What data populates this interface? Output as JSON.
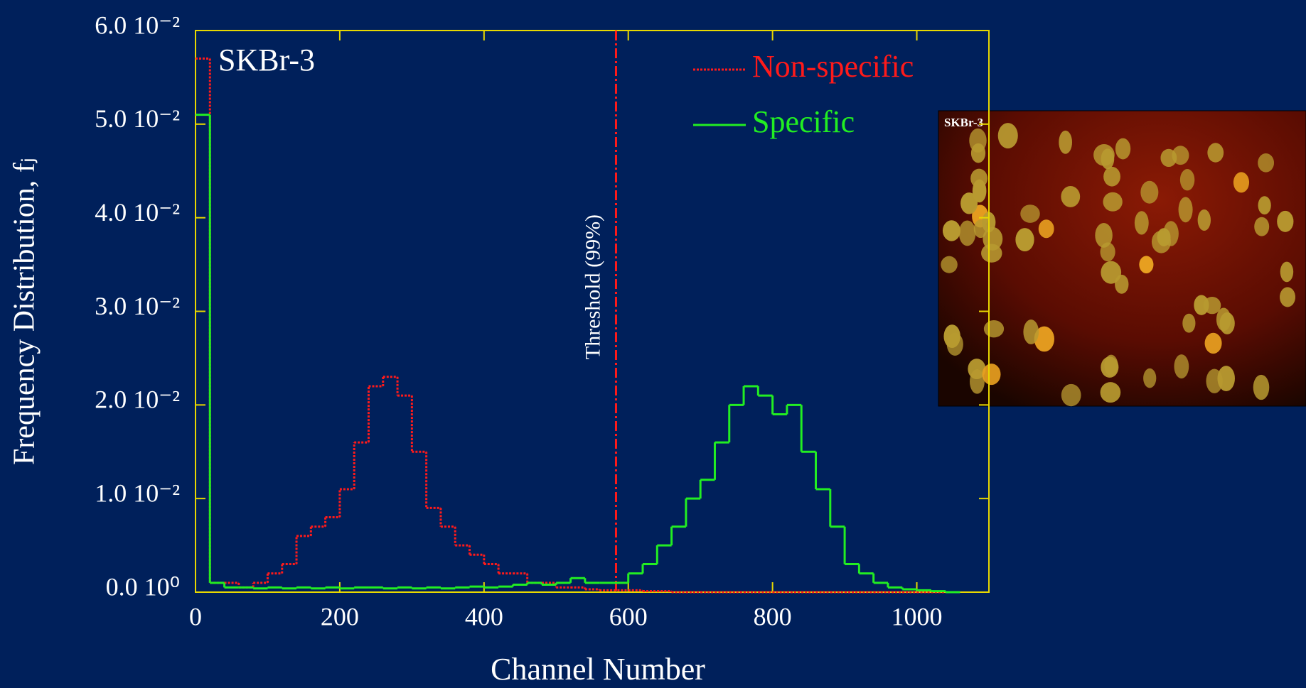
{
  "chart_data": {
    "type": "step",
    "label": "SKBr-3",
    "xlabel": "Channel Number",
    "ylabel": "Frequency Distribution, fⱼ",
    "x": [
      0,
      20,
      40,
      60,
      80,
      100,
      120,
      140,
      160,
      180,
      200,
      220,
      240,
      260,
      280,
      300,
      320,
      340,
      360,
      380,
      400,
      420,
      440,
      460,
      480,
      500,
      520,
      540,
      560,
      580,
      600,
      620,
      640,
      660,
      680,
      700,
      720,
      740,
      760,
      780,
      800,
      820,
      840,
      860,
      880,
      900,
      920,
      940,
      960,
      980,
      1000,
      1020,
      1040
    ],
    "series": [
      {
        "name": "Non-specific",
        "color": "#ff1a1a",
        "dash": true,
        "values": [
          0.057,
          0.001,
          0.001,
          0.0005,
          0.001,
          0.002,
          0.003,
          0.006,
          0.007,
          0.008,
          0.011,
          0.016,
          0.022,
          0.023,
          0.021,
          0.015,
          0.009,
          0.007,
          0.005,
          0.004,
          0.003,
          0.002,
          0.002,
          0.001,
          0.001,
          0.0005,
          0.0005,
          0.0003,
          0.0002,
          0.0002,
          0.0002,
          0.0001,
          0.0001,
          0,
          0,
          0,
          0,
          0,
          0,
          0,
          0,
          0,
          0,
          0,
          0,
          0,
          0,
          0,
          0,
          0,
          0,
          0,
          0
        ]
      },
      {
        "name": "Specific",
        "color": "#22ee22",
        "dash": false,
        "values": [
          0.051,
          0.001,
          0.0005,
          0.0005,
          0.0004,
          0.0005,
          0.0004,
          0.0005,
          0.0004,
          0.0005,
          0.0004,
          0.0005,
          0.0005,
          0.0004,
          0.0005,
          0.0004,
          0.0005,
          0.0004,
          0.0005,
          0.0006,
          0.0005,
          0.0006,
          0.0008,
          0.001,
          0.0008,
          0.001,
          0.0015,
          0.001,
          0.001,
          0.001,
          0.002,
          0.003,
          0.005,
          0.007,
          0.01,
          0.012,
          0.016,
          0.02,
          0.022,
          0.021,
          0.019,
          0.02,
          0.015,
          0.011,
          0.007,
          0.003,
          0.002,
          0.001,
          0.0005,
          0.0003,
          0.0002,
          0.0001,
          0
        ]
      }
    ],
    "xlim": [
      0,
      1100
    ],
    "xticks": [
      0,
      200,
      400,
      600,
      800,
      1000
    ],
    "ylim": [
      0,
      0.06
    ],
    "yticks": [
      {
        "value": 0,
        "label": "0.0 10⁰"
      },
      {
        "value": 0.01,
        "label": "1.0 10⁻²"
      },
      {
        "value": 0.02,
        "label": "2.0 10⁻²"
      },
      {
        "value": 0.03,
        "label": "3.0 10⁻²"
      },
      {
        "value": 0.04,
        "label": "4.0 10⁻²"
      },
      {
        "value": 0.05,
        "label": "5.0 10⁻²"
      },
      {
        "value": 0.06,
        "label": "6.0 10⁻²"
      }
    ],
    "annotations": [
      {
        "text": "Threshold (99%)",
        "x": 583,
        "color": "#ff1a1a"
      }
    ],
    "legend": "upper right",
    "axis_color": "#e8d800"
  },
  "inset": {
    "label": "SKBr-3"
  }
}
